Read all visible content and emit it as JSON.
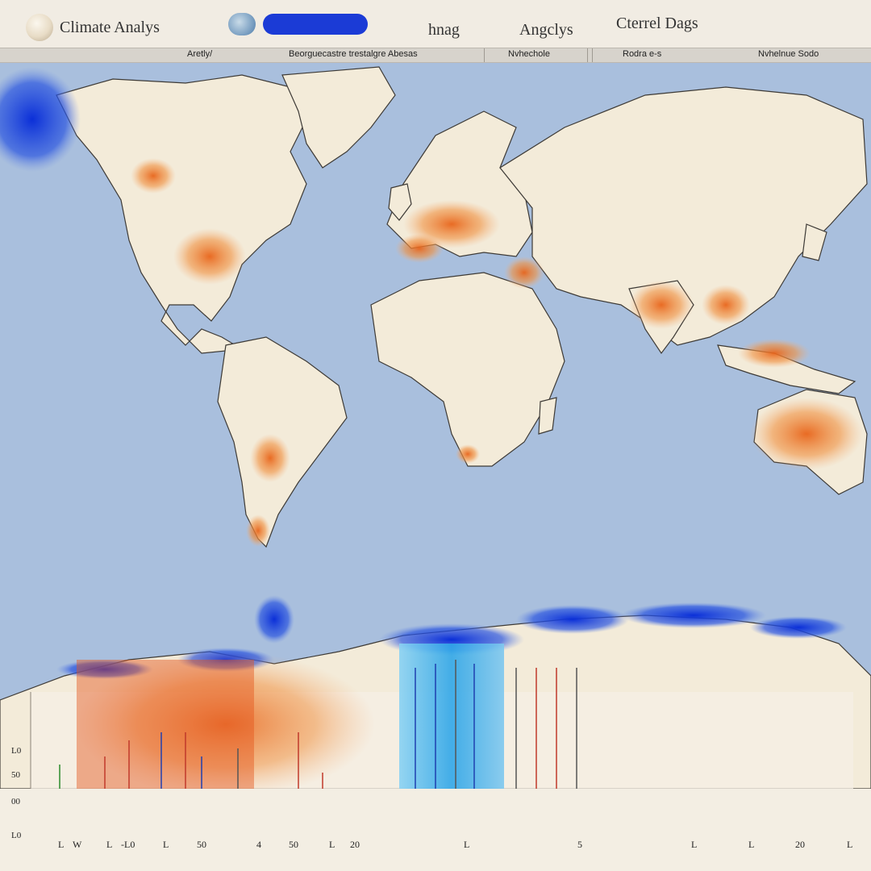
{
  "app": {
    "title": "Climate Analys"
  },
  "top_tabs": [
    {
      "label": "hnag"
    },
    {
      "label": "Angclys"
    },
    {
      "label": "Cterrel Dags"
    }
  ],
  "subbar": [
    {
      "label": "Aretly/"
    },
    {
      "label": "Beorguecastre trestalgre  Abesas"
    },
    {
      "label": "Nvhechole"
    },
    {
      "label": "Rodra e-s"
    },
    {
      "label": "Nvhelnue Sodo"
    }
  ],
  "chart": {
    "y_ticks": [
      "L0",
      "50",
      "00",
      "L0"
    ],
    "x_ticks": [
      "L",
      "W",
      "L",
      "-L0",
      "L",
      "50",
      "4",
      "50",
      "L",
      "20",
      "L",
      "5",
      "L",
      "L",
      "20",
      "L"
    ]
  },
  "colors": {
    "ocean": "#a9bfdd",
    "land": "#f3ebd9",
    "hot": "#e86a1f",
    "cold": "#1237d8",
    "accent": "#1b3bd6"
  }
}
